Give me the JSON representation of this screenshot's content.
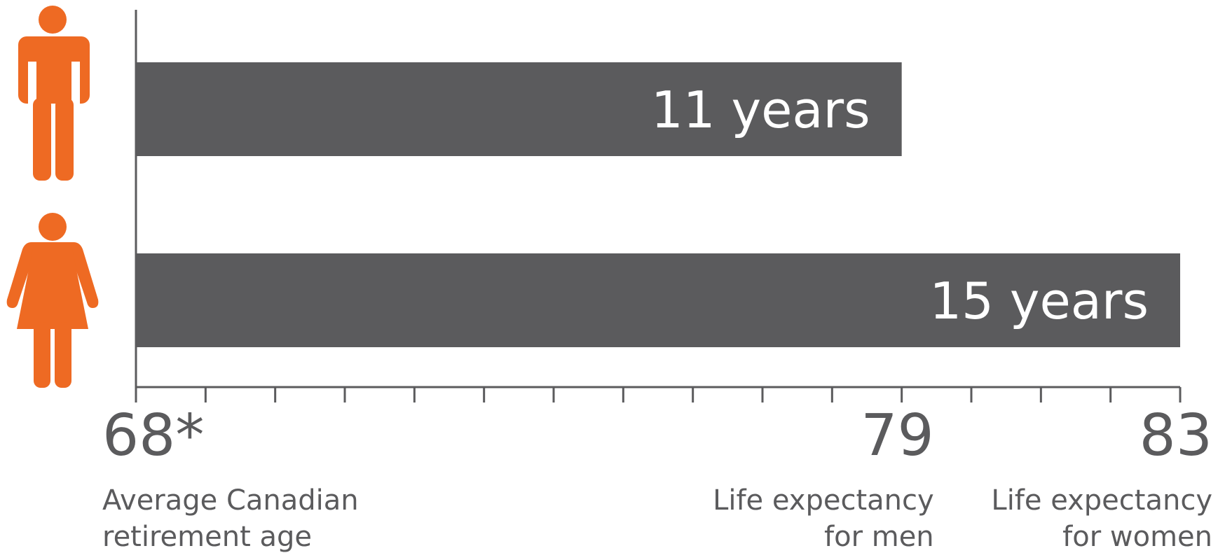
{
  "chart_data": {
    "type": "bar",
    "series": [
      {
        "color": "#5b5b5d",
        "values": [
          11,
          15
        ],
        "value_labels": [
          "11 years",
          "15 years"
        ]
      }
    ],
    "xlim": [
      68,
      83
    ],
    "xticks": [
      {
        "value": 68,
        "label": "68*"
      },
      79,
      83
    ],
    "minor_xticks": [
      68,
      69,
      70,
      71,
      72,
      73,
      74,
      75,
      76,
      77,
      78,
      79,
      80,
      81,
      82,
      83
    ],
    "annotations": [
      [
        "Average Canadian",
        "retirement age"
      ],
      [
        "Life expectancy",
        "for men"
      ],
      [
        "Life expectancy",
        "for women"
      ]
    ],
    "icon_color": "#ee6a23",
    "axis_color": "#5b5b5d"
  }
}
